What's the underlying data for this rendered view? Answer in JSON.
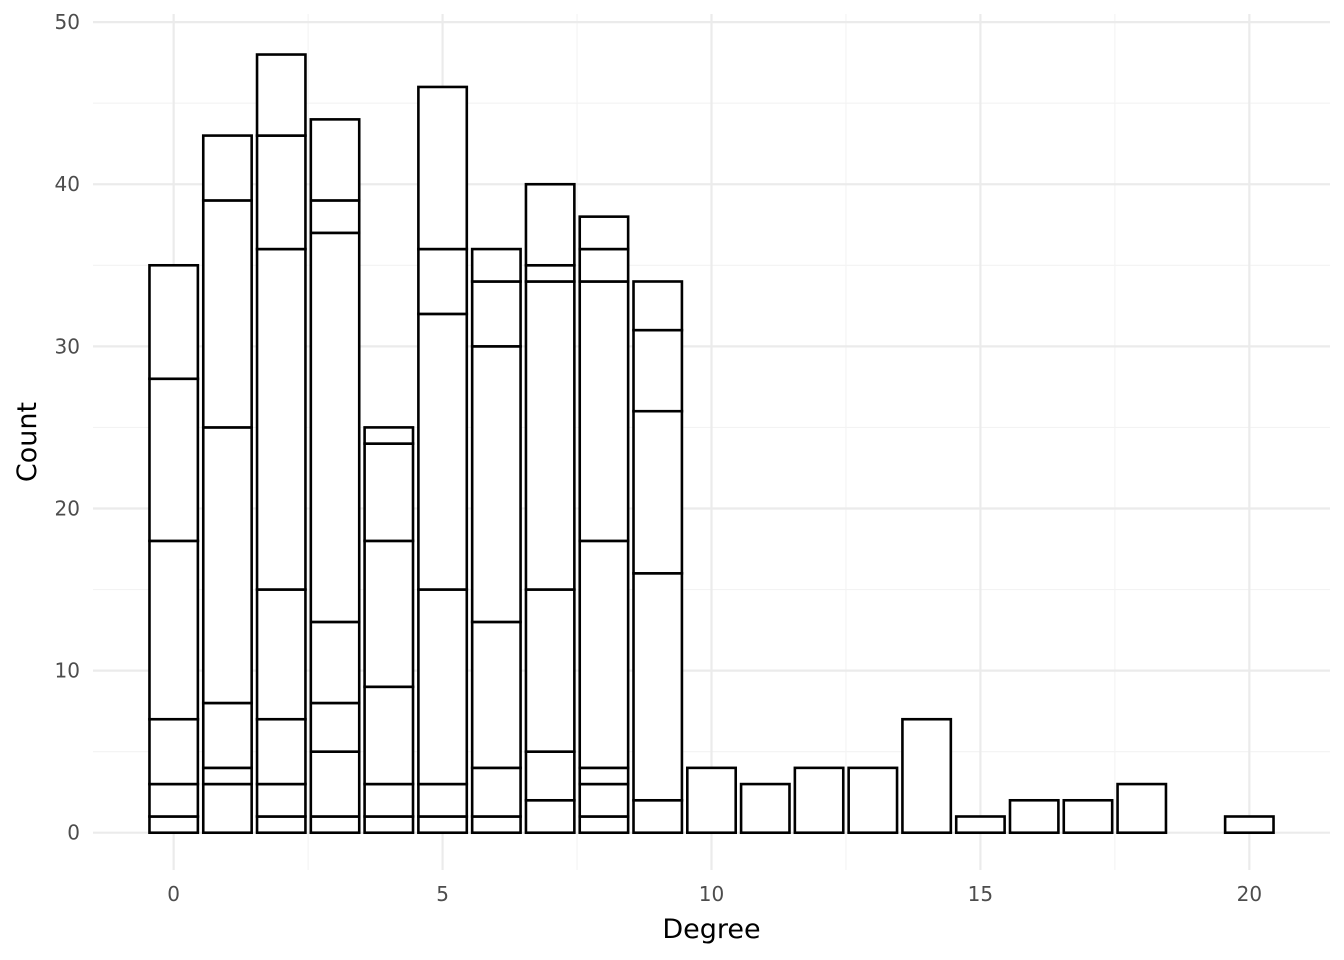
{
  "chart_data": {
    "type": "bar",
    "stacked": true,
    "title": "",
    "xlabel": "Degree",
    "ylabel": "Count",
    "xlim": [
      -1.5,
      21.5
    ],
    "ylim": [
      -2.3,
      50.5
    ],
    "x_ticks": [
      0,
      5,
      10,
      15,
      20
    ],
    "y_ticks": [
      0,
      10,
      20,
      30,
      40,
      50
    ],
    "x_minor_ticks": [
      2.5,
      7.5,
      12.5,
      17.5
    ],
    "y_minor_ticks": [
      5,
      15,
      25,
      35,
      45
    ],
    "grid": true,
    "legend": "none",
    "bar_fill": "#ffffff",
    "bar_outline": "#000000",
    "bars": [
      {
        "x": 0,
        "boundaries": [
          1,
          3,
          7,
          18,
          28,
          35
        ]
      },
      {
        "x": 1,
        "boundaries": [
          3,
          4,
          8,
          25,
          39,
          43
        ]
      },
      {
        "x": 2,
        "boundaries": [
          1,
          3,
          7,
          15,
          36,
          43,
          48
        ]
      },
      {
        "x": 3,
        "boundaries": [
          1,
          5,
          8,
          13,
          37,
          39,
          44
        ]
      },
      {
        "x": 4,
        "boundaries": [
          1,
          3,
          9,
          18,
          24,
          25
        ]
      },
      {
        "x": 5,
        "boundaries": [
          1,
          3,
          15,
          32,
          36,
          46
        ]
      },
      {
        "x": 6,
        "boundaries": [
          1,
          4,
          13,
          30,
          34,
          36
        ]
      },
      {
        "x": 7,
        "boundaries": [
          2,
          5,
          15,
          34,
          35,
          40
        ]
      },
      {
        "x": 8,
        "boundaries": [
          1,
          3,
          4,
          18,
          34,
          36,
          38
        ]
      },
      {
        "x": 9,
        "boundaries": [
          2,
          16,
          26,
          31,
          34
        ]
      },
      {
        "x": 10,
        "boundaries": [
          4
        ]
      },
      {
        "x": 11,
        "boundaries": [
          3
        ]
      },
      {
        "x": 12,
        "boundaries": [
          4
        ]
      },
      {
        "x": 13,
        "boundaries": [
          4
        ]
      },
      {
        "x": 14,
        "boundaries": [
          7
        ]
      },
      {
        "x": 15,
        "boundaries": [
          1
        ]
      },
      {
        "x": 16,
        "boundaries": [
          2
        ]
      },
      {
        "x": 17,
        "boundaries": [
          2
        ]
      },
      {
        "x": 18,
        "boundaries": [
          3
        ]
      },
      {
        "x": 20,
        "boundaries": [
          1
        ]
      }
    ]
  }
}
